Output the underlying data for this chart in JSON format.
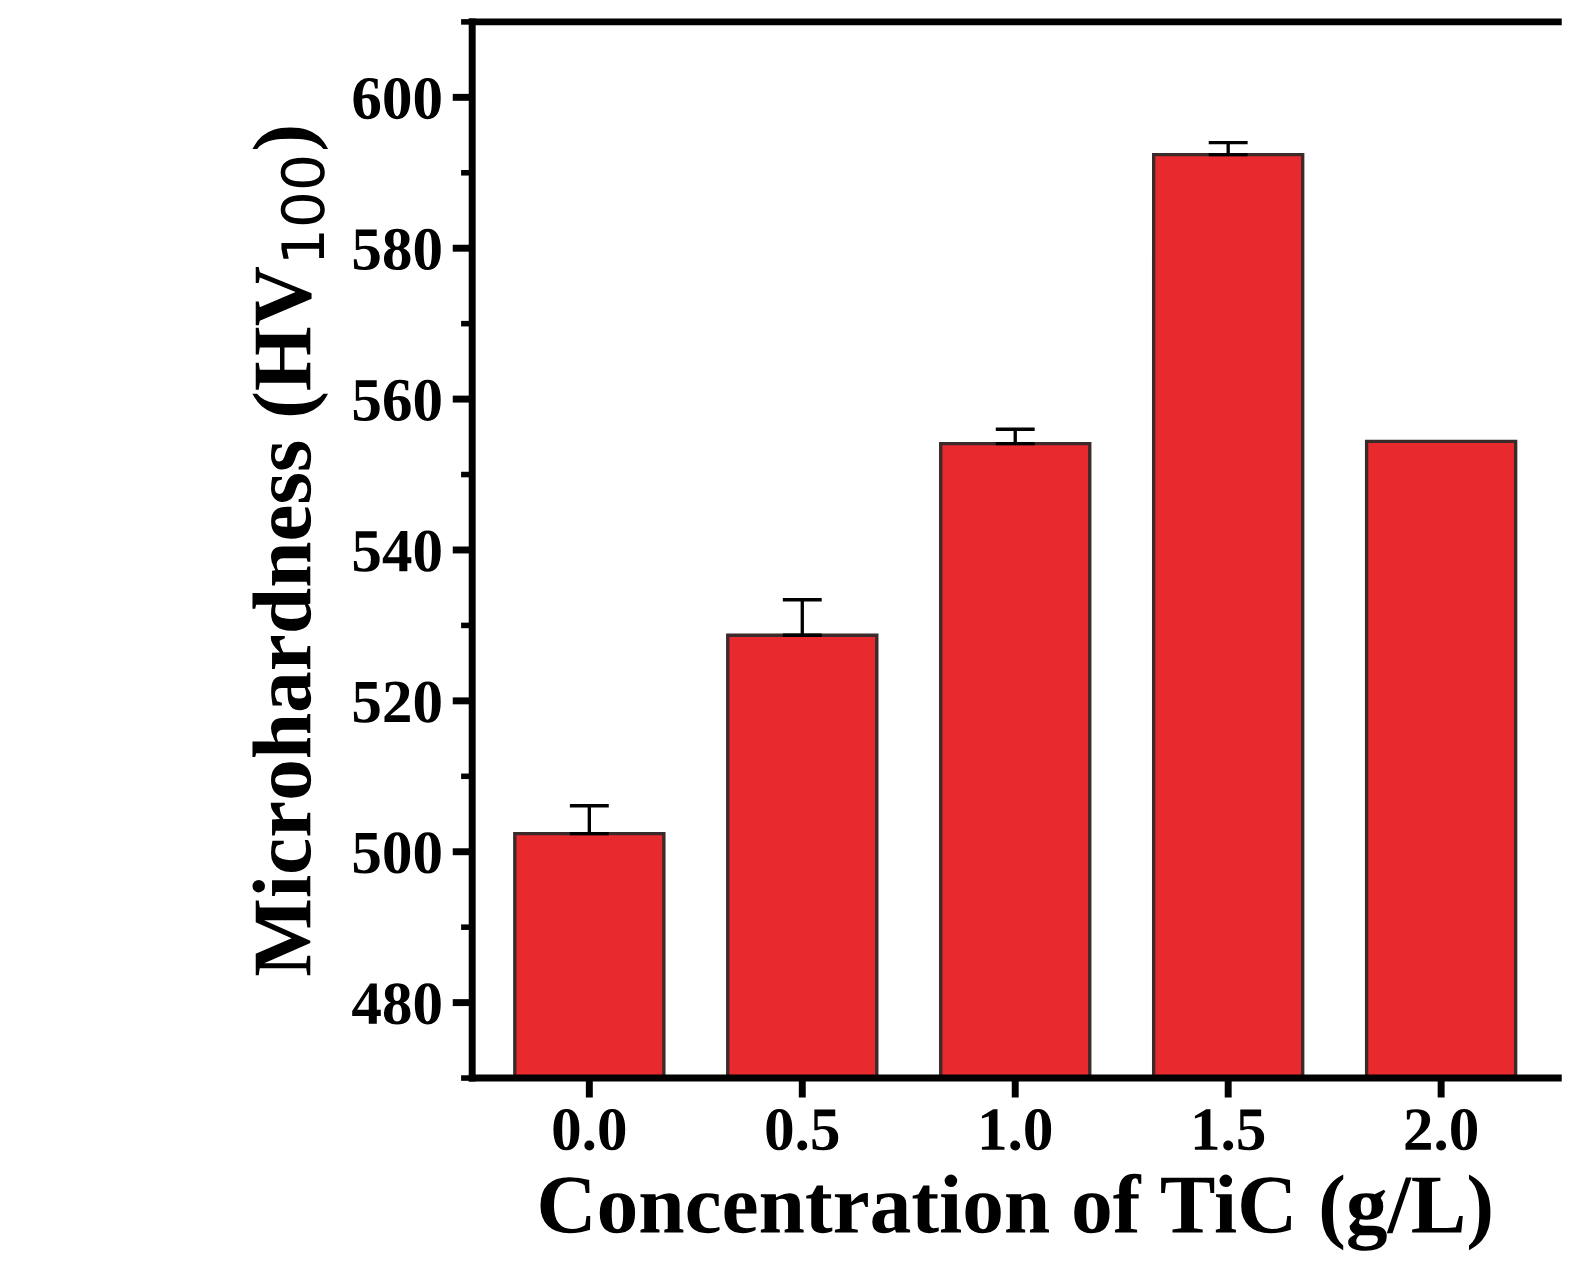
{
  "chart_data": {
    "type": "bar",
    "xlabel": "Concentration of TiC (g/L)",
    "ylabel": "Microhardness (HV$_{100}$)",
    "categories": [
      "0.0",
      "0.5",
      "1.0",
      "1.5",
      "2.0"
    ],
    "values": [
      502.4,
      528.7,
      554.1,
      592.4,
      554.4
    ],
    "errors": [
      3.7,
      4.7,
      1.9,
      1.6,
      null
    ],
    "color": "#e8292d",
    "ylim": [
      470,
      610
    ],
    "yticks": [
      480,
      500,
      520,
      540,
      560,
      580,
      600
    ],
    "grid": false
  }
}
